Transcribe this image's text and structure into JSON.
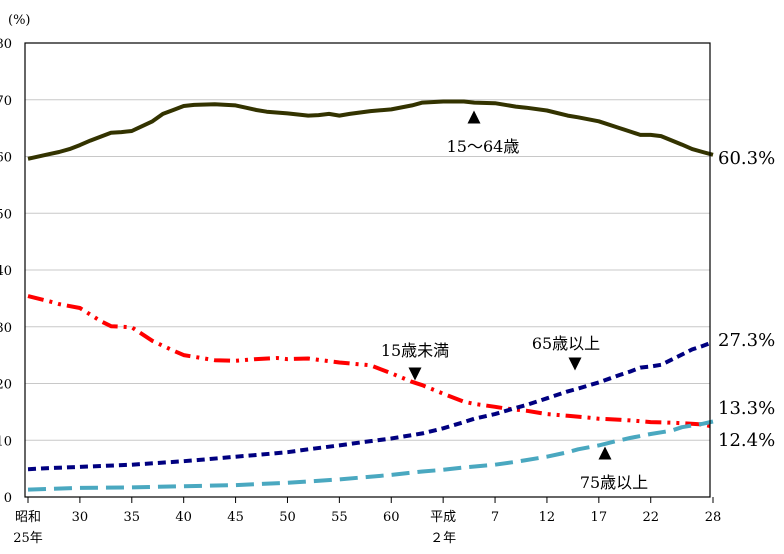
{
  "chart_data": {
    "type": "line",
    "y_unit_label": "(%)",
    "ylim": [
      0,
      80
    ],
    "y_ticks": [
      0,
      10,
      20,
      30,
      40,
      50,
      60,
      70,
      80
    ],
    "xlim": [
      1950,
      2016
    ],
    "x_ticks": [
      {
        "x": 1950,
        "line1": "昭和",
        "line2": "25年"
      },
      {
        "x": 1955,
        "line1": "30",
        "line2": ""
      },
      {
        "x": 1960,
        "line1": "35",
        "line2": ""
      },
      {
        "x": 1965,
        "line1": "40",
        "line2": ""
      },
      {
        "x": 1970,
        "line1": "45",
        "line2": ""
      },
      {
        "x": 1975,
        "line1": "50",
        "line2": ""
      },
      {
        "x": 1980,
        "line1": "55",
        "line2": ""
      },
      {
        "x": 1985,
        "line1": "60",
        "line2": ""
      },
      {
        "x": 1990,
        "line1": "平成",
        "line2": "２年"
      },
      {
        "x": 1995,
        "line1": "7",
        "line2": ""
      },
      {
        "x": 2000,
        "line1": "12",
        "line2": ""
      },
      {
        "x": 2005,
        "line1": "17",
        "line2": ""
      },
      {
        "x": 2010,
        "line1": "22",
        "line2": ""
      },
      {
        "x": 2016,
        "line1": "28",
        "line2": ""
      }
    ],
    "series": [
      {
        "name": "15〜64歳",
        "color": "#333300",
        "style": "solid",
        "end_label": "60.3%",
        "points": [
          [
            1950,
            59.6
          ],
          [
            1952,
            60.4
          ],
          [
            1953,
            60.8
          ],
          [
            1954,
            61.3
          ],
          [
            1955,
            62.0
          ],
          [
            1956,
            62.8
          ],
          [
            1958,
            64.2
          ],
          [
            1959,
            64.3
          ],
          [
            1960,
            64.5
          ],
          [
            1962,
            66.2
          ],
          [
            1963,
            67.5
          ],
          [
            1964,
            68.2
          ],
          [
            1965,
            68.9
          ],
          [
            1966,
            69.1
          ],
          [
            1968,
            69.2
          ],
          [
            1970,
            69.0
          ],
          [
            1971,
            68.6
          ],
          [
            1972,
            68.2
          ],
          [
            1973,
            67.9
          ],
          [
            1975,
            67.6
          ],
          [
            1977,
            67.2
          ],
          [
            1978,
            67.3
          ],
          [
            1979,
            67.5
          ],
          [
            1980,
            67.2
          ],
          [
            1981,
            67.5
          ],
          [
            1983,
            68.0
          ],
          [
            1985,
            68.3
          ],
          [
            1987,
            69.0
          ],
          [
            1988,
            69.5
          ],
          [
            1990,
            69.7
          ],
          [
            1992,
            69.7
          ],
          [
            1993,
            69.5
          ],
          [
            1995,
            69.4
          ],
          [
            1997,
            68.8
          ],
          [
            1998,
            68.6
          ],
          [
            2000,
            68.1
          ],
          [
            2002,
            67.2
          ],
          [
            2003,
            66.9
          ],
          [
            2005,
            66.2
          ],
          [
            2007,
            65.0
          ],
          [
            2008,
            64.4
          ],
          [
            2009,
            63.8
          ],
          [
            2010,
            63.8
          ],
          [
            2011,
            63.6
          ],
          [
            2013,
            62.1
          ],
          [
            2014,
            61.3
          ],
          [
            2015,
            60.8
          ],
          [
            2016,
            60.3
          ]
        ]
      },
      {
        "name": "15歳未満",
        "color": "#ff0000",
        "style": "dash-dot-dot",
        "end_label": "12.4%",
        "points": [
          [
            1950,
            35.4
          ],
          [
            1952,
            34.5
          ],
          [
            1953,
            34.0
          ],
          [
            1955,
            33.3
          ],
          [
            1957,
            31.0
          ],
          [
            1958,
            30.1
          ],
          [
            1960,
            29.9
          ],
          [
            1962,
            27.5
          ],
          [
            1964,
            25.8
          ],
          [
            1965,
            25.0
          ],
          [
            1967,
            24.4
          ],
          [
            1968,
            24.1
          ],
          [
            1970,
            24.0
          ],
          [
            1972,
            24.3
          ],
          [
            1974,
            24.5
          ],
          [
            1975,
            24.3
          ],
          [
            1977,
            24.4
          ],
          [
            1980,
            23.7
          ],
          [
            1983,
            23.2
          ],
          [
            1985,
            21.8
          ],
          [
            1987,
            20.3
          ],
          [
            1988,
            19.7
          ],
          [
            1990,
            18.2
          ],
          [
            1992,
            16.8
          ],
          [
            1993,
            16.4
          ],
          [
            1995,
            15.9
          ],
          [
            1996,
            15.6
          ],
          [
            1998,
            15.2
          ],
          [
            2000,
            14.6
          ],
          [
            2002,
            14.3
          ],
          [
            2004,
            14.0
          ],
          [
            2005,
            13.8
          ],
          [
            2007,
            13.6
          ],
          [
            2008,
            13.5
          ],
          [
            2010,
            13.2
          ],
          [
            2012,
            13.1
          ],
          [
            2013,
            13.0
          ],
          [
            2015,
            12.8
          ],
          [
            2016,
            12.4
          ]
        ]
      },
      {
        "name": "65歳以上",
        "color": "#000080",
        "style": "dash",
        "end_label": "27.3%",
        "points": [
          [
            1950,
            4.9
          ],
          [
            1952,
            5.1
          ],
          [
            1955,
            5.3
          ],
          [
            1960,
            5.7
          ],
          [
            1965,
            6.3
          ],
          [
            1967,
            6.6
          ],
          [
            1970,
            7.1
          ],
          [
            1972,
            7.4
          ],
          [
            1975,
            7.9
          ],
          [
            1977,
            8.4
          ],
          [
            1980,
            9.1
          ],
          [
            1982,
            9.6
          ],
          [
            1985,
            10.3
          ],
          [
            1987,
            10.9
          ],
          [
            1988,
            11.2
          ],
          [
            1990,
            12.1
          ],
          [
            1992,
            13.2
          ],
          [
            1993,
            13.8
          ],
          [
            1995,
            14.6
          ],
          [
            1997,
            15.7
          ],
          [
            1998,
            16.2
          ],
          [
            2000,
            17.4
          ],
          [
            2002,
            18.6
          ],
          [
            2003,
            19.1
          ],
          [
            2005,
            20.2
          ],
          [
            2007,
            21.5
          ],
          [
            2008,
            22.1
          ],
          [
            2009,
            22.8
          ],
          [
            2010,
            23.0
          ],
          [
            2011,
            23.3
          ],
          [
            2012,
            24.2
          ],
          [
            2013,
            25.1
          ],
          [
            2014,
            26.0
          ],
          [
            2015,
            26.6
          ],
          [
            2016,
            27.3
          ]
        ]
      },
      {
        "name": "75歳以上",
        "color": "#4aa8c0",
        "style": "long-dash",
        "end_label": "13.3%",
        "points": [
          [
            1950,
            1.3
          ],
          [
            1955,
            1.6
          ],
          [
            1960,
            1.7
          ],
          [
            1965,
            1.9
          ],
          [
            1970,
            2.1
          ],
          [
            1975,
            2.5
          ],
          [
            1980,
            3.1
          ],
          [
            1985,
            3.9
          ],
          [
            1988,
            4.5
          ],
          [
            1990,
            4.8
          ],
          [
            1992,
            5.2
          ],
          [
            1995,
            5.7
          ],
          [
            1997,
            6.2
          ],
          [
            2000,
            7.1
          ],
          [
            2002,
            7.9
          ],
          [
            2003,
            8.4
          ],
          [
            2005,
            9.1
          ],
          [
            2007,
            10.0
          ],
          [
            2008,
            10.4
          ],
          [
            2010,
            11.1
          ],
          [
            2012,
            11.7
          ],
          [
            2013,
            12.3
          ],
          [
            2015,
            12.9
          ],
          [
            2016,
            13.3
          ]
        ]
      }
    ],
    "annotations": [
      {
        "text": "15〜64歳",
        "marker": "up-triangle",
        "series": "15〜64歳"
      },
      {
        "text": "15歳未満",
        "marker": "down-triangle",
        "series": "15歳未満"
      },
      {
        "text": "65歳以上",
        "marker": "down-triangle",
        "series": "65歳以上"
      },
      {
        "text": "75歳以上",
        "marker": "up-triangle",
        "series": "75歳以上"
      }
    ],
    "grid": "horizontal",
    "legend": "none"
  }
}
